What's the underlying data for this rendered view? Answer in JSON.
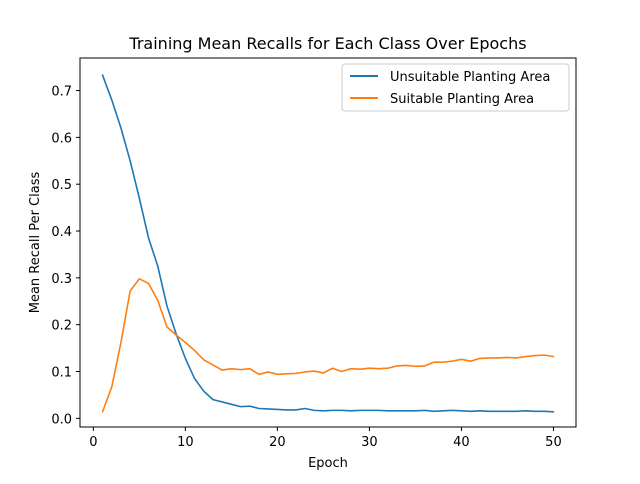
{
  "chart_data": {
    "type": "line",
    "title": "Training Mean Recalls for Each Class Over Epochs",
    "xlabel": "Epoch",
    "ylabel": "Mean Recall Per Class",
    "xlim": [
      -1.45,
      52.45
    ],
    "ylim": [
      -0.0185,
      0.7695
    ],
    "xticks": [
      0,
      10,
      20,
      30,
      40,
      50
    ],
    "yticks": [
      0.0,
      0.1,
      0.2,
      0.3,
      0.4,
      0.5,
      0.6,
      0.7
    ],
    "xtick_labels": [
      "0",
      "10",
      "20",
      "30",
      "40",
      "50"
    ],
    "ytick_labels": [
      "0.0",
      "0.1",
      "0.2",
      "0.3",
      "0.4",
      "0.5",
      "0.6",
      "0.7"
    ],
    "grid": false,
    "legend_position": "top-right",
    "x": [
      1,
      2,
      3,
      4,
      5,
      6,
      7,
      8,
      9,
      10,
      11,
      12,
      13,
      14,
      15,
      16,
      17,
      18,
      19,
      20,
      21,
      22,
      23,
      24,
      25,
      26,
      27,
      28,
      29,
      30,
      31,
      32,
      33,
      34,
      35,
      36,
      37,
      38,
      39,
      40,
      41,
      42,
      43,
      44,
      45,
      46,
      47,
      48,
      49,
      50
    ],
    "series": [
      {
        "name": "Unsuitable Planting Area",
        "color": "#1f77b4",
        "values": [
          0.733,
          0.68,
          0.62,
          0.55,
          0.47,
          0.385,
          0.325,
          0.24,
          0.18,
          0.128,
          0.085,
          0.058,
          0.04,
          0.035,
          0.03,
          0.025,
          0.026,
          0.021,
          0.02,
          0.019,
          0.018,
          0.018,
          0.021,
          0.017,
          0.016,
          0.017,
          0.017,
          0.016,
          0.017,
          0.017,
          0.017,
          0.016,
          0.016,
          0.016,
          0.016,
          0.017,
          0.015,
          0.016,
          0.017,
          0.016,
          0.015,
          0.016,
          0.015,
          0.015,
          0.015,
          0.015,
          0.016,
          0.015,
          0.015,
          0.014
        ]
      },
      {
        "name": "Suitable Planting Area",
        "color": "#ff7f0e",
        "values": [
          0.014,
          0.067,
          0.162,
          0.272,
          0.298,
          0.288,
          0.252,
          0.195,
          0.178,
          0.162,
          0.145,
          0.125,
          0.114,
          0.103,
          0.106,
          0.104,
          0.106,
          0.094,
          0.099,
          0.094,
          0.095,
          0.096,
          0.099,
          0.101,
          0.097,
          0.107,
          0.1,
          0.106,
          0.105,
          0.107,
          0.106,
          0.107,
          0.112,
          0.113,
          0.111,
          0.112,
          0.12,
          0.12,
          0.122,
          0.126,
          0.122,
          0.128,
          0.129,
          0.129,
          0.13,
          0.129,
          0.132,
          0.134,
          0.135,
          0.132
        ]
      }
    ]
  }
}
